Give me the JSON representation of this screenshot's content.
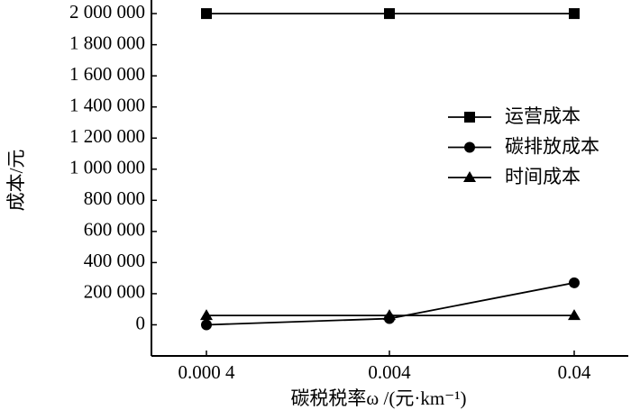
{
  "chart_data": {
    "type": "line",
    "x_label": "碳税税率ω /(元·km⁻¹)",
    "y_label": "成本/元",
    "categories": [
      "0.000 4",
      "0.004",
      "0.04"
    ],
    "series": [
      {
        "name": "运营成本",
        "color": "#000000",
        "marker": "square",
        "values": [
          2000000,
          2000000,
          2000000
        ]
      },
      {
        "name": "碳排放成本",
        "color": "#000000",
        "marker": "circle",
        "values": [
          0,
          40000,
          270000
        ]
      },
      {
        "name": "时间成本",
        "color": "#000000",
        "marker": "triangle",
        "values": [
          60000,
          60000,
          60000
        ]
      }
    ],
    "ylim": [
      -200000,
      2070000
    ],
    "yticks": [
      0,
      {
        "value": 200000,
        "label": "200 000"
      },
      {
        "value": 400000,
        "label": "400 000"
      },
      {
        "value": 600000,
        "label": "600 000"
      },
      {
        "value": 800000,
        "label": "800 000"
      },
      {
        "value": 1000000,
        "label": "1 000 000"
      },
      {
        "value": 1200000,
        "label": "1 200 000"
      },
      {
        "value": 1400000,
        "label": "1 400 000"
      },
      {
        "value": 1600000,
        "label": "1 600 000"
      },
      {
        "value": 1800000,
        "label": "1 800 000"
      },
      {
        "value": 2000000,
        "label": "2 000 000"
      }
    ],
    "legend": "right"
  }
}
